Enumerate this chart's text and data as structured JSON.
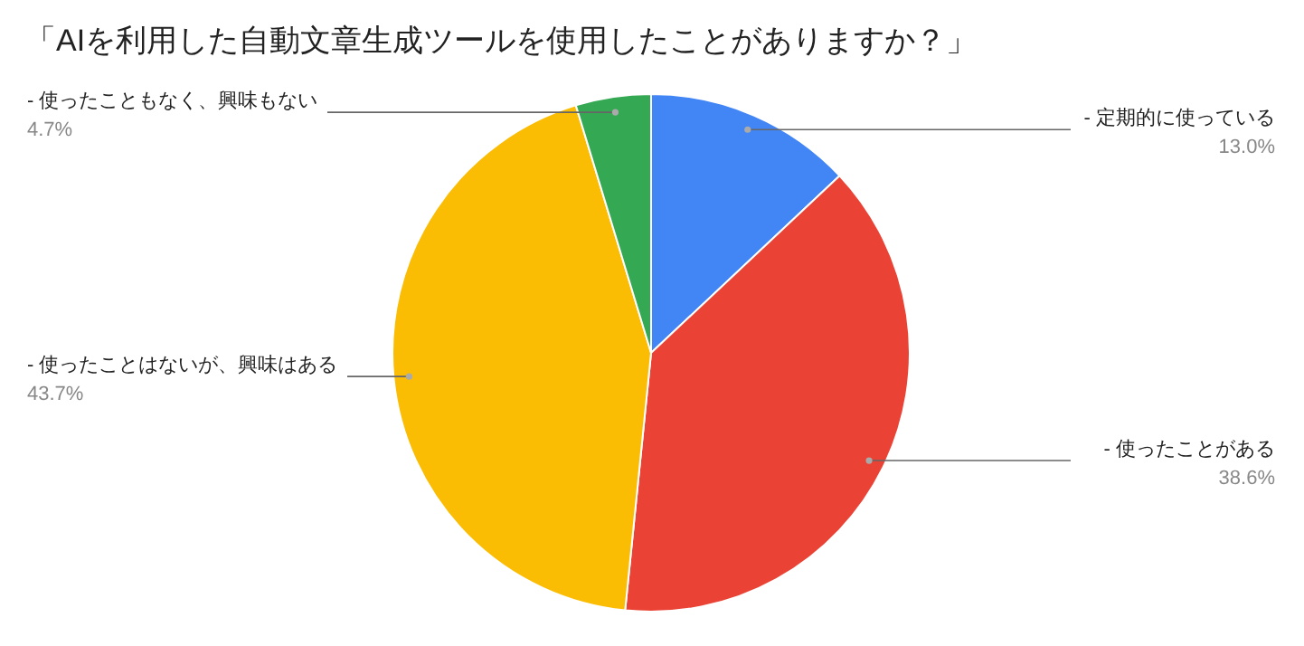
{
  "chart_data": {
    "type": "pie",
    "title": "「AIを利用した自動文章生成ツールを使用したことがありますか？」",
    "categories": [
      "- 定期的に使っている",
      "- 使ったことがある",
      "- 使ったことはないが、興味はある",
      "- 使ったこともなく、興味もない"
    ],
    "values": [
      13.0,
      38.6,
      43.7,
      4.7
    ],
    "value_labels": [
      "13.0%",
      "38.6%",
      "43.7%",
      "4.7%"
    ],
    "colors": [
      "#4285f4",
      "#ea4335",
      "#fbbc04",
      "#34a853"
    ]
  }
}
